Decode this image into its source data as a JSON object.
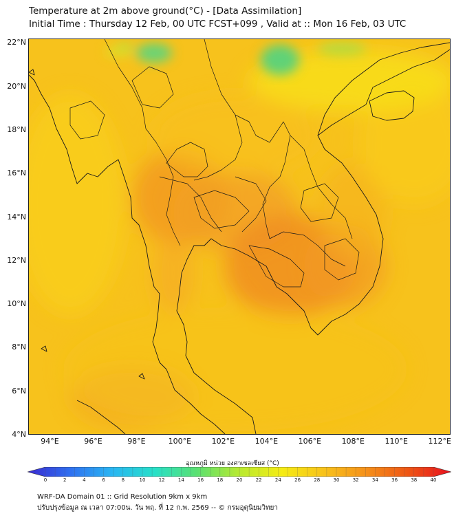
{
  "title_line1": "Temperature at 2m above ground(°C) - [Data Assimilation]",
  "title_line2": "Initial Time : Thursday 12 Feb, 00 UTC FCST+099 , Valid at :: Mon 16 Feb, 03 UTC",
  "map": {
    "lat_labels": [
      "22°N",
      "20°N",
      "18°N",
      "16°N",
      "14°N",
      "12°N",
      "10°N",
      "8°N",
      "6°N",
      "4°N"
    ],
    "lon_labels": [
      "94°E",
      "96°E",
      "98°E",
      "100°E",
      "102°E",
      "104°E",
      "106°E",
      "108°E",
      "110°E",
      "112°E"
    ],
    "lon_range": [
      93.0,
      112.5
    ],
    "lat_range": [
      4.0,
      22.2
    ],
    "base_color": "#f7c21c"
  },
  "colorbar": {
    "title": "อุณหภูมิ หน่วย องศาเซลเซียส (°C)",
    "ticks": [
      "0",
      "2",
      "4",
      "6",
      "8",
      "10",
      "12",
      "14",
      "16",
      "18",
      "20",
      "22",
      "24",
      "26",
      "28",
      "30",
      "32",
      "34",
      "36",
      "38",
      "40"
    ],
    "colors": [
      "#3a2ad0",
      "#2f6ff0",
      "#29b6f2",
      "#27e0c8",
      "#5ae070",
      "#b8ea30",
      "#f5ec14",
      "#f8c21a",
      "#f5901a",
      "#ee5414",
      "#e81020"
    ]
  },
  "footer_line1": "WRF-DA Domain 01 :: Grid Resolution 9km x 9km",
  "footer_line2": "ปรับปรุงข้อมูล ณ เวลา 07:00น. วัน พฤ. ที่ 12 ก.พ. 2569 -- © กรมอุตุนิยมวิทยา"
}
